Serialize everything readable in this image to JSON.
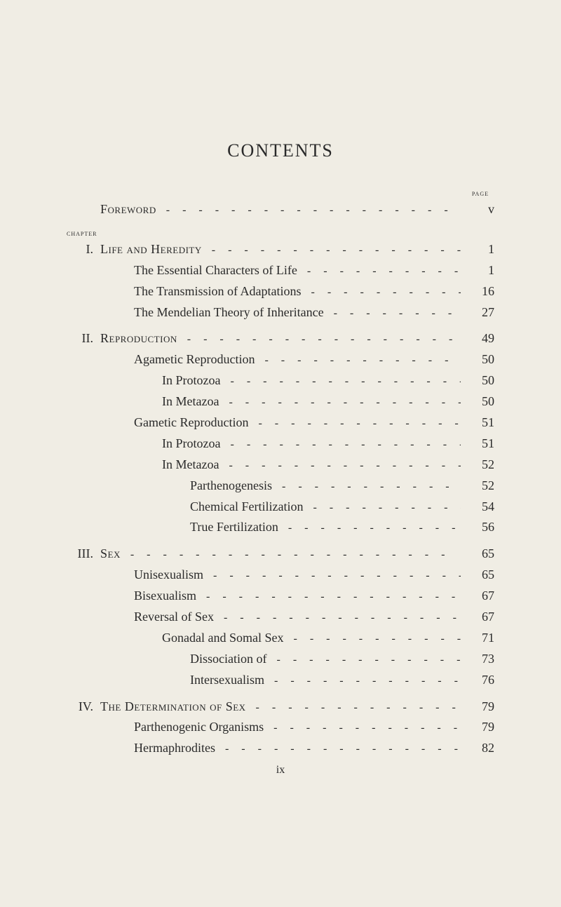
{
  "background_color": "#f0ede4",
  "text_color": "#2a2a2a",
  "title": "CONTENTS",
  "page_header": "page",
  "chapter_header": "chapter",
  "footer": "ix",
  "leader_char": "-",
  "entries": [
    {
      "roman": "",
      "label": "Foreword",
      "smallcaps": true,
      "indent": 0,
      "page": "v",
      "withRoman": true
    },
    {
      "roman": "I.",
      "label": "Life and Heredity",
      "smallcaps": true,
      "indent": 0,
      "page": "1",
      "withRoman": true,
      "chapterBefore": true
    },
    {
      "label": "The Essential Characters of Life",
      "indent": 1,
      "page": "1"
    },
    {
      "label": "The Transmission of Adaptations",
      "indent": 1,
      "page": "16"
    },
    {
      "label": "The Mendelian Theory of Inheritance",
      "indent": 1,
      "page": "27"
    },
    {
      "roman": "II.",
      "label": "Reproduction",
      "smallcaps": true,
      "indent": 0,
      "page": "49",
      "withRoman": true,
      "gapBefore": true
    },
    {
      "label": "Agametic Reproduction",
      "indent": 1,
      "page": "50"
    },
    {
      "label": "In Protozoa",
      "indent": 2,
      "page": "50"
    },
    {
      "label": "In Metazoa",
      "indent": 2,
      "page": "50"
    },
    {
      "label": "Gametic Reproduction",
      "indent": 1,
      "page": "51"
    },
    {
      "label": "In Protozoa",
      "indent": 2,
      "page": "51"
    },
    {
      "label": "In Metazoa",
      "indent": 2,
      "page": "52"
    },
    {
      "label": "Parthenogenesis",
      "indent": 3,
      "page": "52"
    },
    {
      "label": "Chemical Fertilization",
      "indent": 3,
      "page": "54"
    },
    {
      "label": "True Fertilization",
      "indent": 3,
      "page": "56"
    },
    {
      "roman": "III.",
      "label": "Sex",
      "smallcaps": true,
      "indent": 0,
      "page": "65",
      "withRoman": true,
      "gapBefore": true
    },
    {
      "label": "Unisexualism",
      "indent": 1,
      "page": "65"
    },
    {
      "label": "Bisexualism",
      "indent": 1,
      "page": "67"
    },
    {
      "label": "Reversal of Sex",
      "indent": 1,
      "page": "67"
    },
    {
      "label": "Gonadal and Somal Sex",
      "indent": 2,
      "page": "71"
    },
    {
      "label": "Dissociation of",
      "indent": 3,
      "page": "73"
    },
    {
      "label": "Intersexualism",
      "indent": 3,
      "page": "76"
    },
    {
      "roman": "IV.",
      "label": "The Determination of Sex",
      "smallcaps": true,
      "indent": 0,
      "page": "79",
      "withRoman": true,
      "gapBefore": true
    },
    {
      "label": "Parthenogenic Organisms",
      "indent": 1,
      "page": "79"
    },
    {
      "label": "Hermaphrodites",
      "indent": 1,
      "page": "82"
    }
  ]
}
